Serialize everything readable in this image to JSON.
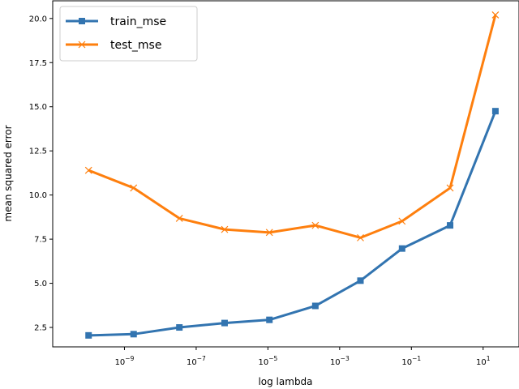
{
  "chart_data": {
    "type": "line",
    "xlabel": "log lambda",
    "ylabel": "mean squared error",
    "xscale": "log",
    "xlim": [
      1e-11,
      100.0
    ],
    "ylim": [
      1.4,
      21.0
    ],
    "grid": false,
    "legend_position": "top-left",
    "x_ticks": [
      {
        "value": 1e-09,
        "label": "10^-9"
      },
      {
        "value": 1e-07,
        "label": "10^-7"
      },
      {
        "value": 1e-05,
        "label": "10^-5"
      },
      {
        "value": 0.001,
        "label": "10^-3"
      },
      {
        "value": 0.1,
        "label": "10^-1"
      },
      {
        "value": 10.0,
        "label": "10^1"
      }
    ],
    "y_ticks": [
      "2.5",
      "5.0",
      "7.5",
      "10.0",
      "12.5",
      "15.0",
      "17.5",
      "20.0"
    ],
    "x": [
      1e-10,
      1.8e-09,
      3.4e-08,
      6.2e-07,
      1.1e-05,
      0.00021,
      0.0038,
      0.055,
      1.2,
      22.0
    ],
    "series": [
      {
        "name": "train_mse",
        "color": "#3274b0",
        "marker": "square",
        "values": [
          2.05,
          2.12,
          2.5,
          2.75,
          2.93,
          3.72,
          5.15,
          6.97,
          8.28,
          14.75
        ]
      },
      {
        "name": "test_mse",
        "color": "#fe7f0e",
        "marker": "x",
        "values": [
          11.4,
          10.4,
          8.68,
          8.05,
          7.88,
          8.28,
          7.58,
          8.52,
          10.4,
          20.2
        ]
      }
    ]
  }
}
